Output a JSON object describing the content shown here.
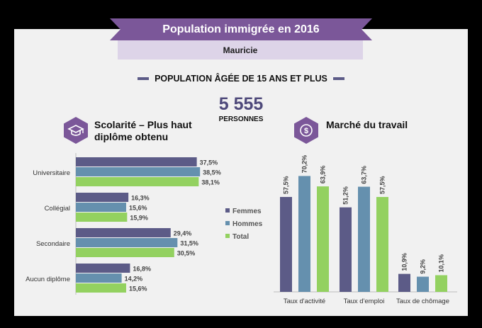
{
  "header": {
    "title": "Population immigrée en 2016",
    "region": "Mauricie",
    "age_heading": "POPULATION ÂGÉE DE 15 ANS ET PLUS",
    "total_value": "5 555",
    "total_label": "PERSONNES"
  },
  "sections": {
    "education_title_line1": "Scolarité – Plus haut",
    "education_title_line2": "diplôme obtenu",
    "labour_title": "Marché du travail"
  },
  "colors": {
    "Femmes": "#5c5b87",
    "Hommes": "#6590ae",
    "Total": "#93d160",
    "accent": "#7b5799"
  },
  "icons": {
    "education": "graduation-cap-icon",
    "labour": "dollar-coin-icon"
  },
  "chart_data": [
    {
      "type": "bar",
      "orientation": "horizontal",
      "categories": [
        "Universitaire",
        "Collégial",
        "Secondaire",
        "Aucun diplôme"
      ],
      "series": [
        {
          "name": "Femmes",
          "values": [
            37.5,
            16.3,
            29.4,
            16.8
          ]
        },
        {
          "name": "Hommes",
          "values": [
            38.5,
            15.6,
            31.5,
            14.2
          ]
        },
        {
          "name": "Total",
          "values": [
            38.1,
            15.9,
            30.5,
            15.6
          ]
        }
      ],
      "value_format": "percent",
      "legend": [
        "Femmes",
        "Hommes",
        "Total"
      ],
      "legend_position": "right"
    },
    {
      "type": "bar",
      "orientation": "vertical",
      "categories": [
        "Taux d'activité",
        "Taux d'emploi",
        "Taux de chômage"
      ],
      "series": [
        {
          "name": "Femmes",
          "values": [
            57.5,
            51.2,
            10.9
          ]
        },
        {
          "name": "Hommes",
          "values": [
            70.2,
            63.7,
            9.2
          ]
        },
        {
          "name": "Total",
          "values": [
            63.9,
            57.5,
            10.1
          ]
        }
      ],
      "value_format": "percent"
    }
  ]
}
